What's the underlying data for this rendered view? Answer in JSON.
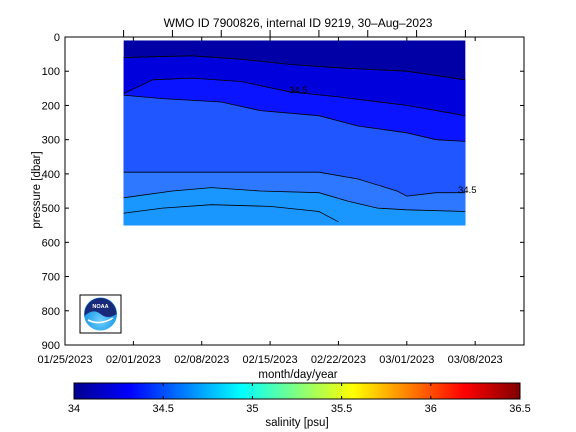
{
  "chart_data": {
    "type": "heatmap",
    "title": "WMO ID 7900826, internal ID 9219, 30–Aug–2023",
    "xlabel": "month/day/year",
    "ylabel": "pressure [dbar]",
    "x_ticks": [
      "01/25/2023",
      "02/01/2023",
      "02/08/2023",
      "02/15/2023",
      "02/22/2023",
      "03/01/2023",
      "03/08/2023"
    ],
    "y_ticks": [
      "0",
      "100",
      "200",
      "300",
      "400",
      "500",
      "600",
      "700",
      "800",
      "900"
    ],
    "xlim": [
      "01/25/2023",
      "03/13/2023"
    ],
    "ylim": [
      900,
      0
    ],
    "y_reversed": true,
    "colorbar": {
      "label": "salinity [psu]",
      "ticks": [
        "34",
        "34.5",
        "35",
        "35.5",
        "36",
        "36.5"
      ],
      "range": [
        34,
        36.5
      ]
    },
    "contour_labels": [
      "34.5",
      "34.5"
    ],
    "profile_dates": [
      "01/31/2023",
      "02/05/2023",
      "02/10/2023",
      "02/15/2023",
      "02/20/2023",
      "02/25/2023",
      "03/02/2023",
      "03/07/2023"
    ],
    "data_extent": {
      "x": [
        "01/31/2023",
        "03/07/2023"
      ],
      "pressure": [
        10,
        550
      ]
    },
    "contour_lines": [
      {
        "level": 34.2,
        "points": [
          [
            "01/31/2023",
            60
          ],
          [
            "02/07/2023",
            55
          ],
          [
            "02/12/2023",
            65
          ],
          [
            "02/17/2023",
            80
          ],
          [
            "02/22/2023",
            90
          ],
          [
            "03/01/2023",
            100
          ],
          [
            "03/07/2023",
            125
          ]
        ]
      },
      {
        "level": 34.35,
        "points": [
          [
            "01/31/2023",
            165
          ],
          [
            "02/03/2023",
            125
          ],
          [
            "02/07/2023",
            120
          ],
          [
            "02/12/2023",
            130
          ],
          [
            "02/17/2023",
            160
          ],
          [
            "02/22/2023",
            175
          ],
          [
            "03/01/2023",
            200
          ],
          [
            "03/07/2023",
            230
          ]
        ]
      },
      {
        "level": 34.5,
        "points": [
          [
            "01/31/2023",
            170
          ],
          [
            "02/04/2023",
            180
          ],
          [
            "02/10/2023",
            190
          ],
          [
            "02/14/2023",
            215
          ],
          [
            "02/20/2023",
            230
          ],
          [
            "02/24/2023",
            260
          ],
          [
            "03/01/2023",
            280
          ],
          [
            "03/04/2023",
            300
          ],
          [
            "03/07/2023",
            305
          ]
        ]
      },
      {
        "level": 34.65,
        "points": [
          [
            "01/31/2023",
            395
          ],
          [
            "02/04/2023",
            395
          ],
          [
            "02/10/2023",
            395
          ],
          [
            "02/20/2023",
            395
          ],
          [
            "02/24/2023",
            415
          ],
          [
            "02/28/2023",
            450
          ],
          [
            "03/01/2023",
            465
          ],
          [
            "03/04/2023",
            455
          ],
          [
            "03/07/2023",
            455
          ]
        ]
      },
      {
        "level": 34.8,
        "points": [
          [
            "01/31/2023",
            470
          ],
          [
            "02/05/2023",
            450
          ],
          [
            "02/09/2023",
            440
          ],
          [
            "02/14/2023",
            450
          ],
          [
            "02/20/2023",
            455
          ],
          [
            "02/23/2023",
            480
          ],
          [
            "02/26/2023",
            500
          ],
          [
            "03/01/2023",
            505
          ],
          [
            "03/07/2023",
            510
          ]
        ]
      },
      {
        "level": 34.95,
        "points": [
          [
            "01/31/2023",
            515
          ],
          [
            "02/04/2023",
            500
          ],
          [
            "02/09/2023",
            490
          ],
          [
            "02/15/2023",
            495
          ],
          [
            "02/20/2023",
            510
          ],
          [
            "02/22/2023",
            540
          ]
        ]
      }
    ],
    "colors": {
      "band_1": "#0000a6",
      "band_2": "#0000dc",
      "band_3": "#0a14ff",
      "band_4": "#1f56ff",
      "band_5": "#2d78ff",
      "band_6": "#1a96ff",
      "colormap": [
        "#00008f",
        "#0000ff",
        "#0080ff",
        "#00ffff",
        "#80ff80",
        "#ffff00",
        "#ff8000",
        "#ff0000",
        "#800000"
      ]
    }
  },
  "logo": {
    "text": "NOAA"
  }
}
